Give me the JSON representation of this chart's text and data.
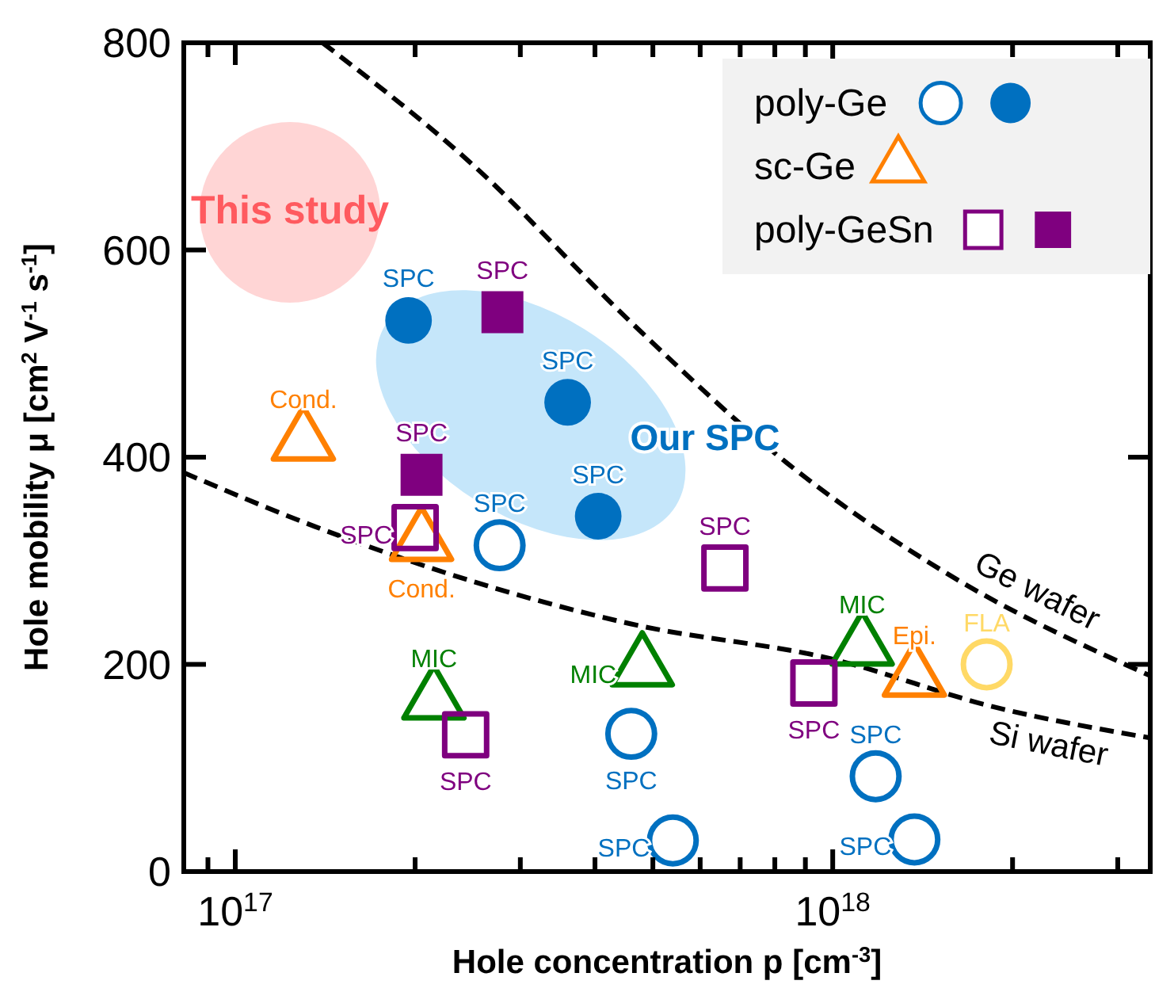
{
  "chart_data": {
    "type": "scatter",
    "xlabel": "Hole concentration p [cm$^{-3}$]",
    "ylabel": "Hole mobility μ [cm$^{2}$ V$^{-1}$ s$^{-1}$]",
    "log": "x",
    "xlim": [
      8.2e+16,
      3.4e+18
    ],
    "ylim": [
      0,
      800
    ],
    "xticks": [
      {
        "value": 9e+16,
        "label": null
      },
      {
        "value": 1e+17,
        "label": "10$^{17}$"
      },
      {
        "value": 2e+17,
        "label": null
      },
      {
        "value": 3e+17,
        "label": null
      },
      {
        "value": 4e+17,
        "label": null
      },
      {
        "value": 5e+17,
        "label": null
      },
      {
        "value": 6e+17,
        "label": null
      },
      {
        "value": 7e+17,
        "label": null
      },
      {
        "value": 8e+17,
        "label": null
      },
      {
        "value": 9e+17,
        "label": null
      },
      {
        "value": 1e+18,
        "label": "10$^{18}$"
      },
      {
        "value": 2e+18,
        "label": null
      },
      {
        "value": 3e+18,
        "label": null
      }
    ],
    "yticks": [
      0,
      200,
      400,
      600,
      800
    ],
    "grid": false,
    "legend": "top right",
    "series": [
      {
        "name": "poly-Ge",
        "marker": "circle",
        "color": "#0070c0",
        "x": [
          2.77e+17,
          4.6e+17,
          5.4e+17,
          1.18e+18,
          1.37e+18
        ],
        "values": [
          315,
          133,
          30,
          92,
          31
        ],
        "value_labels": [
          "SPC",
          "SPC",
          "SPC",
          "SPC",
          "SPC"
        ]
      },
      {
        "marker": "circle",
        "color": "#ffd966",
        "x": [
          1.81e+18
        ],
        "values": [
          200
        ],
        "value_labels": [
          "FLA"
        ]
      },
      {
        "marker": "circle",
        "color": "#0070c0",
        "x": [
          1.95e+17,
          3.6e+17,
          4.05e+17
        ],
        "values": [
          532,
          453,
          343
        ],
        "value_labels": [
          "SPC",
          "SPC",
          "SPC"
        ]
      },
      {
        "name": "sc-Ge",
        "marker": "triangle",
        "color": "#ff8000",
        "x": [
          1.3e+17,
          2.05e+17,
          1.37e+18
        ],
        "values": [
          415,
          318,
          187
        ],
        "value_labels": [
          "Cond.",
          "Cond.",
          "Epi."
        ]
      },
      {
        "marker": "triangle",
        "color": "#008000",
        "x": [
          2.15e+17,
          4.8e+17,
          1.12e+18
        ],
        "values": [
          165,
          197,
          217
        ],
        "value_labels": [
          "MIC",
          "MIC",
          "MIC"
        ]
      },
      {
        "name": "poly-GeSn",
        "marker": "square",
        "color": "#7f007f",
        "x": [
          2e+17,
          2.43e+17,
          6.6e+17,
          9.3e+17
        ],
        "values": [
          332,
          132,
          293,
          182
        ],
        "value_labels": [
          "SPC",
          "SPC",
          "SPC",
          "SPC"
        ]
      },
      {
        "marker": "square",
        "color": "#7f007f",
        "x": [
          2.8e+17,
          2.05e+17
        ],
        "values": [
          540,
          383
        ],
        "value_labels": [
          "SPC",
          "SPC"
        ]
      },
      {
        "name": "Ge wafer",
        "type": "line",
        "line_style": "dashed",
        "color": "#000000",
        "x": [
          1.4e+17,
          2.5e+17,
          4.6e+17,
          8.4e+17,
          1.55e+18,
          3.4e+18
        ],
        "values": [
          800,
          682,
          530,
          394,
          288,
          189
        ]
      },
      {
        "name": "Si wafer",
        "type": "line",
        "line_style": "dashed",
        "color": "#000000",
        "x": [
          8.2e+16,
          1.36e+17,
          2.5e+17,
          4.6e+17,
          1e+18,
          1.86e+18,
          3.4e+18
        ],
        "values": [
          385,
          333,
          280,
          239,
          205,
          159,
          129
        ]
      }
    ],
    "annotations": [
      "This study",
      "Our SPC"
    ]
  }
}
